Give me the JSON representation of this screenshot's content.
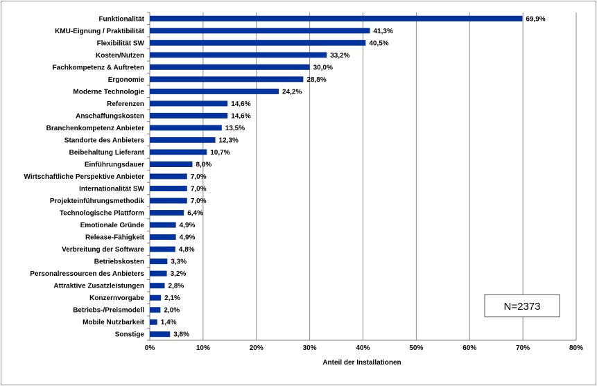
{
  "chart_data": {
    "type": "bar",
    "orientation": "horizontal",
    "title": "",
    "xlabel": "Anteil der Installationen",
    "ylabel": "",
    "xlim": [
      0,
      80
    ],
    "x_ticks": [
      "0%",
      "10%",
      "20%",
      "30%",
      "40%",
      "50%",
      "60%",
      "70%",
      "80%"
    ],
    "grid": true,
    "bar_color": "#0033A0",
    "annotation": "N=2373",
    "categories": [
      "Funktionalität",
      "KMU-Eignung / Praktibilität",
      "Flexibilität SW",
      "Kosten/Nutzen",
      "Fachkompetenz & Auftreten",
      "Ergonomie",
      "Moderne Technologie",
      "Referenzen",
      "Anschaffungskosten",
      "Branchenkompetenz Anbieter",
      "Standorte des Anbieters",
      "Beibehaltung Lieferant",
      "Einführungsdauer",
      "Wirtschaftliche Perspektive Anbieter",
      "Internationalität SW",
      "Projekteinführungsmethodik",
      "Technologische Plattform",
      "Emotionale Gründe",
      "Release-Fähigkeit",
      "Verbreitung der Software",
      "Betriebskosten",
      "Personalressourcen des Anbieters",
      "Attraktive Zusatzleistungen",
      "Konzernvorgabe",
      "Betriebs-/Preismodell",
      "Mobile Nutzbarkeit",
      "Sonstige"
    ],
    "values": [
      69.9,
      41.3,
      40.5,
      33.2,
      30.0,
      28.8,
      24.2,
      14.6,
      14.6,
      13.5,
      12.3,
      10.7,
      8.0,
      7.0,
      7.0,
      7.0,
      6.4,
      4.9,
      4.9,
      4.8,
      3.3,
      3.2,
      2.8,
      2.1,
      2.0,
      1.4,
      3.8
    ],
    "value_labels": [
      "69,9%",
      "41,3%",
      "40,5%",
      "33,2%",
      "30,0%",
      "28,8%",
      "24,2%",
      "14,6%",
      "14,6%",
      "13,5%",
      "12,3%",
      "10,7%",
      "8,0%",
      "7,0%",
      "7,0%",
      "7,0%",
      "6,4%",
      "4,9%",
      "4,9%",
      "4,8%",
      "3,3%",
      "3,2%",
      "2,8%",
      "2,1%",
      "2,0%",
      "1,4%",
      "3,8%"
    ]
  }
}
